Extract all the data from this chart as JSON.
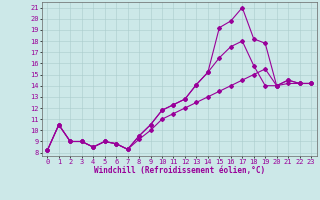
{
  "xlabel": "Windchill (Refroidissement éolien,°C)",
  "xlim": [
    -0.5,
    23.5
  ],
  "ylim": [
    7.7,
    21.5
  ],
  "xticks": [
    0,
    1,
    2,
    3,
    4,
    5,
    6,
    7,
    8,
    9,
    10,
    11,
    12,
    13,
    14,
    15,
    16,
    17,
    18,
    19,
    20,
    21,
    22,
    23
  ],
  "yticks": [
    8,
    9,
    10,
    11,
    12,
    13,
    14,
    15,
    16,
    17,
    18,
    19,
    20,
    21
  ],
  "background_color": "#cce8e8",
  "grid_color": "#aacccc",
  "line_color": "#990099",
  "line1_x": [
    0,
    1,
    2,
    3,
    4,
    5,
    6,
    7,
    8,
    9,
    10,
    11,
    12,
    13,
    14,
    15,
    16,
    17,
    18,
    19,
    20,
    21,
    22,
    23
  ],
  "line1_y": [
    8.2,
    10.5,
    9.0,
    9.0,
    8.5,
    9.0,
    8.8,
    8.3,
    9.5,
    10.5,
    11.8,
    12.3,
    12.8,
    14.1,
    15.2,
    19.2,
    19.8,
    21.0,
    18.2,
    17.8,
    14.0,
    14.5,
    14.2,
    14.2
  ],
  "line2_x": [
    0,
    1,
    2,
    3,
    4,
    5,
    6,
    7,
    8,
    9,
    10,
    11,
    12,
    13,
    14,
    15,
    16,
    17,
    18,
    19,
    20,
    21,
    22,
    23
  ],
  "line2_y": [
    8.2,
    10.5,
    9.0,
    9.0,
    8.5,
    9.0,
    8.8,
    8.3,
    9.5,
    10.5,
    11.8,
    12.3,
    12.8,
    14.1,
    15.2,
    16.5,
    17.5,
    18.0,
    15.8,
    14.0,
    14.0,
    14.5,
    14.2,
    14.2
  ],
  "line3_x": [
    0,
    1,
    2,
    3,
    4,
    5,
    6,
    7,
    8,
    9,
    10,
    11,
    12,
    13,
    14,
    15,
    16,
    17,
    18,
    19,
    20,
    21,
    22,
    23
  ],
  "line3_y": [
    8.2,
    10.5,
    9.0,
    9.0,
    8.5,
    9.0,
    8.8,
    8.3,
    9.2,
    10.0,
    11.0,
    11.5,
    12.0,
    12.5,
    13.0,
    13.5,
    14.0,
    14.5,
    15.0,
    15.5,
    14.0,
    14.2,
    14.2,
    14.2
  ],
  "marker": "D",
  "markersize": 2,
  "linewidth": 0.8,
  "tick_fontsize": 5,
  "xlabel_fontsize": 5.5,
  "figsize": [
    3.2,
    2.0
  ],
  "dpi": 100
}
